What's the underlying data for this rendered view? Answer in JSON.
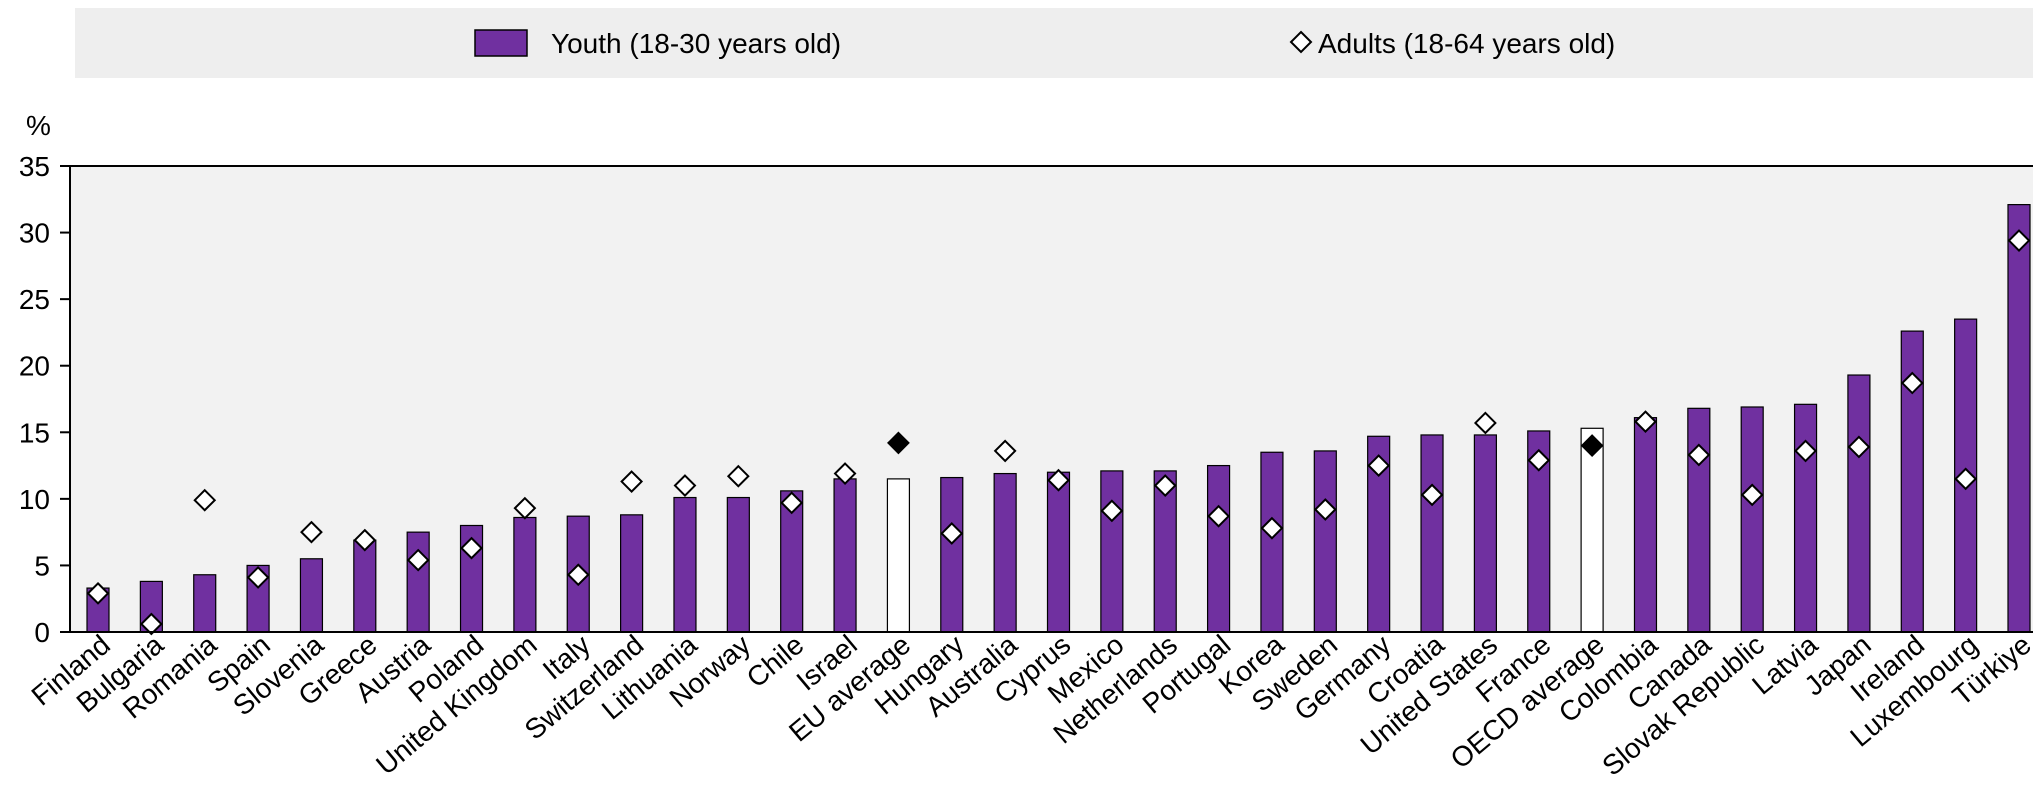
{
  "chart_data": {
    "type": "bar",
    "ylabel": "%",
    "ylim": [
      0,
      35
    ],
    "yticks": [
      0,
      5,
      10,
      15,
      20,
      25,
      30,
      35
    ],
    "legend_position": "top",
    "grid": false,
    "categories": [
      "Finland",
      "Bulgaria",
      "Romania",
      "Spain",
      "Slovenia",
      "Greece",
      "Austria",
      "Poland",
      "United Kingdom",
      "Italy",
      "Switzerland",
      "Lithuania",
      "Norway",
      "Chile",
      "Israel",
      "EU average",
      "Hungary",
      "Australia",
      "Cyprus",
      "Mexico",
      "Netherlands",
      "Portugal",
      "Korea",
      "Sweden",
      "Germany",
      "Croatia",
      "United States",
      "France",
      "OECD average",
      "Colombia",
      "Canada",
      "Slovak Republic",
      "Latvia",
      "Japan",
      "Ireland",
      "Luxembourg",
      "Türkiye"
    ],
    "highlight_categories": [
      "EU average",
      "OECD average"
    ],
    "series": [
      {
        "name": "Youth (18-30 years old)",
        "kind": "bar",
        "values": [
          3.3,
          3.8,
          4.3,
          5.0,
          5.5,
          6.9,
          7.5,
          8.0,
          8.6,
          8.7,
          8.8,
          10.1,
          10.1,
          10.6,
          11.5,
          11.5,
          11.6,
          11.9,
          12.0,
          12.1,
          12.1,
          12.5,
          13.5,
          13.6,
          14.7,
          14.8,
          14.8,
          15.1,
          15.3,
          16.1,
          16.8,
          16.9,
          17.1,
          19.3,
          22.6,
          23.5,
          32.1
        ]
      },
      {
        "name": "Adults (18-64 years old)",
        "kind": "marker",
        "values": [
          2.9,
          0.6,
          9.9,
          4.1,
          7.5,
          6.9,
          5.4,
          6.3,
          9.3,
          4.3,
          11.3,
          11.0,
          11.7,
          9.7,
          11.9,
          14.2,
          7.4,
          13.6,
          11.4,
          9.1,
          11.0,
          8.7,
          7.8,
          9.2,
          12.5,
          10.3,
          15.7,
          12.9,
          14.0,
          15.8,
          13.3,
          10.3,
          13.6,
          13.9,
          18.7,
          11.5,
          29.4
        ]
      }
    ]
  },
  "colors": {
    "bar_fill": "#7030A0",
    "bar_stroke": "#000000",
    "highlight_bar_fill": "#FFFFFF",
    "marker_fill": "#FFFFFF",
    "highlight_marker_fill": "#000000",
    "plot_background": "#F2F2F2",
    "legend_background": "#EEEEEE"
  }
}
